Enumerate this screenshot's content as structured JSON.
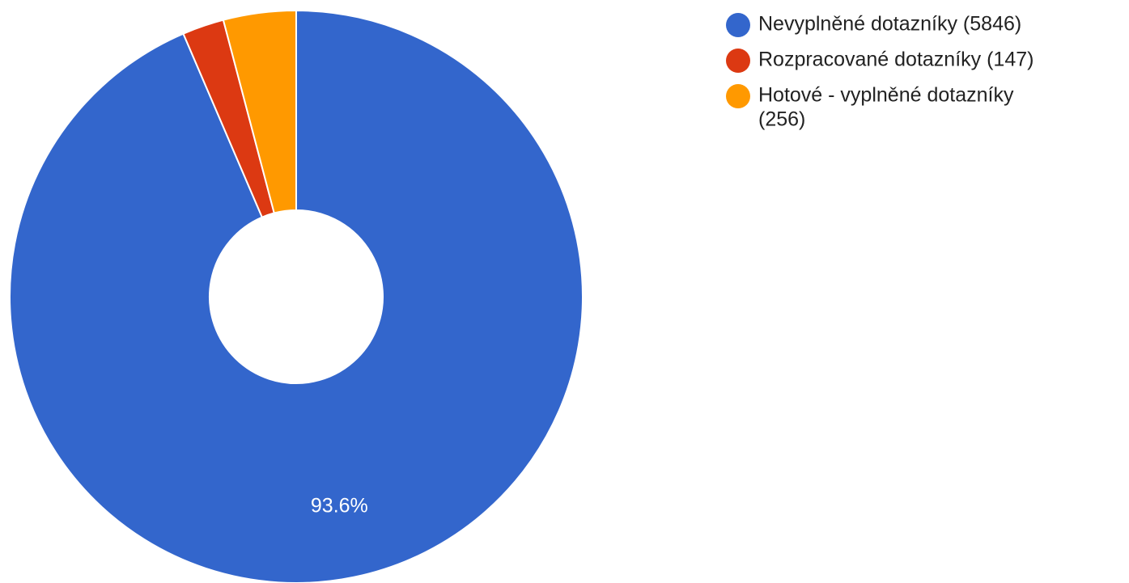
{
  "chart_data": {
    "type": "pie",
    "donut": true,
    "legend_position": "right",
    "slices": [
      {
        "label": "Nevyplněné dotazníky (5846)",
        "value": 5846,
        "color": "#3366cc",
        "display_label": "93.6%"
      },
      {
        "label": "Rozpracované dotazníky (147)",
        "value": 147,
        "color": "#dc3912",
        "display_label": ""
      },
      {
        "label": "Hotové - vyplněné dotazníky (256)",
        "value": 256,
        "color": "#ff9900",
        "display_label": ""
      }
    ],
    "legend_lines": [
      [
        "Nevyplněné dotazníky (5846)"
      ],
      [
        "Rozpracované dotazníky (147)"
      ],
      [
        "Hotové - vyplněné dotazníky",
        "(256)"
      ]
    ]
  }
}
